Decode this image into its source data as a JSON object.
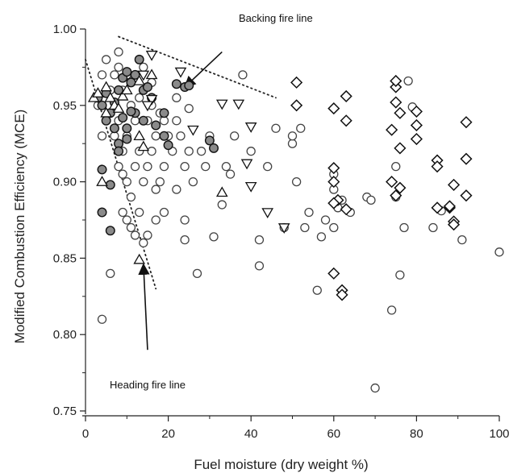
{
  "chart_data": {
    "type": "scatter",
    "xlabel": "Fuel moisture (dry weight %)",
    "ylabel": "Modified Combustion Efficiency (MCE)",
    "xlim": [
      0,
      100
    ],
    "ylim": [
      0.75,
      1.0
    ],
    "x_ticks": [
      "0",
      "20",
      "40",
      "60",
      "80",
      "100"
    ],
    "y_ticks": [
      "0.75",
      "0.80",
      "0.85",
      "0.90",
      "0.95",
      "1.00"
    ],
    "grid": false,
    "legend": "none",
    "series": [
      {
        "marker": "open-circle",
        "points": [
          [
            3,
            0.95
          ],
          [
            4,
            0.97
          ],
          [
            5,
            0.98
          ],
          [
            6,
            0.96
          ],
          [
            7,
            0.97
          ],
          [
            8,
            0.985
          ],
          [
            9,
            0.96
          ],
          [
            10,
            0.97
          ],
          [
            4,
            0.93
          ],
          [
            5,
            0.94
          ],
          [
            6,
            0.945
          ],
          [
            7,
            0.93
          ],
          [
            8,
            0.94
          ],
          [
            9,
            0.92
          ],
          [
            10,
            0.93
          ],
          [
            11,
            0.95
          ],
          [
            12,
            0.94
          ],
          [
            13,
            0.955
          ],
          [
            14,
            0.96
          ],
          [
            15,
            0.94
          ],
          [
            16,
            0.95
          ],
          [
            17,
            0.93
          ],
          [
            18,
            0.945
          ],
          [
            8,
            0.91
          ],
          [
            9,
            0.905
          ],
          [
            10,
            0.9
          ],
          [
            11,
            0.89
          ],
          [
            12,
            0.91
          ],
          [
            13,
            0.92
          ],
          [
            14,
            0.9
          ],
          [
            15,
            0.91
          ],
          [
            16,
            0.92
          ],
          [
            17,
            0.895
          ],
          [
            18,
            0.9
          ],
          [
            19,
            0.91
          ],
          [
            20,
            0.93
          ],
          [
            21,
            0.92
          ],
          [
            22,
            0.94
          ],
          [
            23,
            0.93
          ],
          [
            24,
            0.91
          ],
          [
            25,
            0.92
          ],
          [
            26,
            0.9
          ],
          [
            28,
            0.92
          ],
          [
            29,
            0.91
          ],
          [
            30,
            0.93
          ],
          [
            9,
            0.88
          ],
          [
            10,
            0.875
          ],
          [
            11,
            0.87
          ],
          [
            12,
            0.865
          ],
          [
            13,
            0.88
          ],
          [
            14,
            0.86
          ],
          [
            15,
            0.865
          ],
          [
            17,
            0.875
          ],
          [
            19,
            0.88
          ],
          [
            22,
            0.895
          ],
          [
            24,
            0.875
          ],
          [
            6,
            0.84
          ],
          [
            4,
            0.81
          ],
          [
            27,
            0.84
          ],
          [
            24,
            0.862
          ],
          [
            31,
            0.864
          ],
          [
            33,
            0.885
          ],
          [
            34,
            0.91
          ],
          [
            35,
            0.905
          ],
          [
            36,
            0.93
          ],
          [
            38,
            0.97
          ],
          [
            40,
            0.92
          ],
          [
            42,
            0.862
          ],
          [
            42,
            0.845
          ],
          [
            44,
            0.91
          ],
          [
            46,
            0.935
          ],
          [
            48,
            0.87
          ],
          [
            50,
            0.925
          ],
          [
            50,
            0.93
          ],
          [
            51,
            0.9
          ],
          [
            52,
            0.935
          ],
          [
            53,
            0.87
          ],
          [
            54,
            0.88
          ],
          [
            56,
            0.829
          ],
          [
            57,
            0.864
          ],
          [
            58,
            0.875
          ],
          [
            60,
            0.87
          ],
          [
            60,
            0.895
          ],
          [
            60,
            0.905
          ],
          [
            61,
            0.883
          ],
          [
            62,
            0.888
          ],
          [
            64,
            0.88
          ],
          [
            68,
            0.89
          ],
          [
            69,
            0.888
          ],
          [
            70,
            0.765
          ],
          [
            74,
            0.816
          ],
          [
            75,
            0.89
          ],
          [
            75,
            0.91
          ],
          [
            76,
            0.839
          ],
          [
            77,
            0.87
          ],
          [
            78,
            0.966
          ],
          [
            79,
            0.949
          ],
          [
            84,
            0.87
          ],
          [
            86,
            0.881
          ],
          [
            91,
            0.862
          ],
          [
            100,
            0.854
          ],
          [
            19,
            0.94
          ],
          [
            22,
            0.955
          ],
          [
            25,
            0.948
          ],
          [
            8,
            0.975
          ],
          [
            11,
            0.965
          ],
          [
            14,
            0.975
          ],
          [
            16,
            0.965
          ]
        ]
      },
      {
        "marker": "filled-circle",
        "points": [
          [
            3,
            0.955
          ],
          [
            4,
            0.95
          ],
          [
            5,
            0.958
          ],
          [
            6,
            0.945
          ],
          [
            7,
            0.952
          ],
          [
            8,
            0.96
          ],
          [
            9,
            0.968
          ],
          [
            10,
            0.972
          ],
          [
            11,
            0.965
          ],
          [
            12,
            0.97
          ],
          [
            13,
            0.98
          ],
          [
            14,
            0.96
          ],
          [
            15,
            0.962
          ],
          [
            16,
            0.955
          ],
          [
            5,
            0.94
          ],
          [
            7,
            0.935
          ],
          [
            8,
            0.925
          ],
          [
            10,
            0.935
          ],
          [
            12,
            0.945
          ],
          [
            14,
            0.94
          ],
          [
            17,
            0.937
          ],
          [
            19,
            0.93
          ],
          [
            20,
            0.924
          ],
          [
            19,
            0.945
          ],
          [
            22,
            0.964
          ],
          [
            24,
            0.962
          ],
          [
            30,
            0.927
          ],
          [
            31,
            0.922
          ],
          [
            25,
            0.963
          ],
          [
            4,
            0.908
          ],
          [
            6,
            0.898
          ],
          [
            4,
            0.88
          ],
          [
            6,
            0.868
          ],
          [
            8,
            0.92
          ],
          [
            10,
            0.928
          ],
          [
            9,
            0.942
          ],
          [
            11,
            0.946
          ]
        ]
      },
      {
        "marker": "triangle-up",
        "points": [
          [
            2,
            0.955
          ],
          [
            3,
            0.958
          ],
          [
            5,
            0.962
          ],
          [
            6,
            0.955
          ],
          [
            7,
            0.95
          ],
          [
            8,
            0.948
          ],
          [
            9,
            0.956
          ],
          [
            10,
            0.96
          ],
          [
            4,
            0.9
          ],
          [
            13,
            0.966
          ],
          [
            16,
            0.97
          ],
          [
            13,
            0.93
          ],
          [
            14,
            0.923
          ],
          [
            33,
            0.893
          ],
          [
            13,
            0.849
          ],
          [
            5,
            0.945
          ]
        ]
      },
      {
        "marker": "triangle-down",
        "points": [
          [
            16,
            0.983
          ],
          [
            23,
            0.972
          ],
          [
            16,
            0.954
          ],
          [
            26,
            0.934
          ],
          [
            33,
            0.951
          ],
          [
            37,
            0.951
          ],
          [
            40,
            0.936
          ],
          [
            39,
            0.912
          ],
          [
            40,
            0.897
          ],
          [
            44,
            0.88
          ],
          [
            14,
            0.97
          ],
          [
            15,
            0.95
          ],
          [
            48,
            0.87
          ]
        ]
      },
      {
        "marker": "diamond",
        "points": [
          [
            51,
            0.965
          ],
          [
            51,
            0.95
          ],
          [
            60,
            0.948
          ],
          [
            63,
            0.956
          ],
          [
            63,
            0.94
          ],
          [
            60,
            0.909
          ],
          [
            60,
            0.9
          ],
          [
            61,
            0.888
          ],
          [
            60,
            0.886
          ],
          [
            63,
            0.882
          ],
          [
            60,
            0.84
          ],
          [
            62,
            0.829
          ],
          [
            62,
            0.826
          ],
          [
            74,
            0.934
          ],
          [
            75,
            0.962
          ],
          [
            75,
            0.966
          ],
          [
            75,
            0.952
          ],
          [
            76,
            0.945
          ],
          [
            76,
            0.922
          ],
          [
            74,
            0.9
          ],
          [
            75,
            0.891
          ],
          [
            76,
            0.896
          ],
          [
            80,
            0.946
          ],
          [
            80,
            0.937
          ],
          [
            80,
            0.928
          ],
          [
            85,
            0.914
          ],
          [
            85,
            0.91
          ],
          [
            85,
            0.883
          ],
          [
            88,
            0.883
          ],
          [
            88,
            0.884
          ],
          [
            89,
            0.898
          ],
          [
            89,
            0.874
          ],
          [
            89,
            0.872
          ],
          [
            92,
            0.939
          ],
          [
            92,
            0.915
          ],
          [
            92,
            0.891
          ]
        ]
      }
    ],
    "annotations": [
      {
        "text": "Backing fire line",
        "line": [
          [
            8,
            0.995
          ],
          [
            46,
            0.955
          ]
        ],
        "arrow_from": [
          33,
          0.985
        ],
        "arrow_to": [
          24,
          0.962
        ]
      },
      {
        "text": "Heading fire line",
        "line": [
          [
            0,
            0.98
          ],
          [
            17,
            0.83
          ]
        ],
        "arrow_from": [
          15,
          0.79
        ],
        "arrow_to": [
          14,
          0.846
        ]
      }
    ]
  }
}
